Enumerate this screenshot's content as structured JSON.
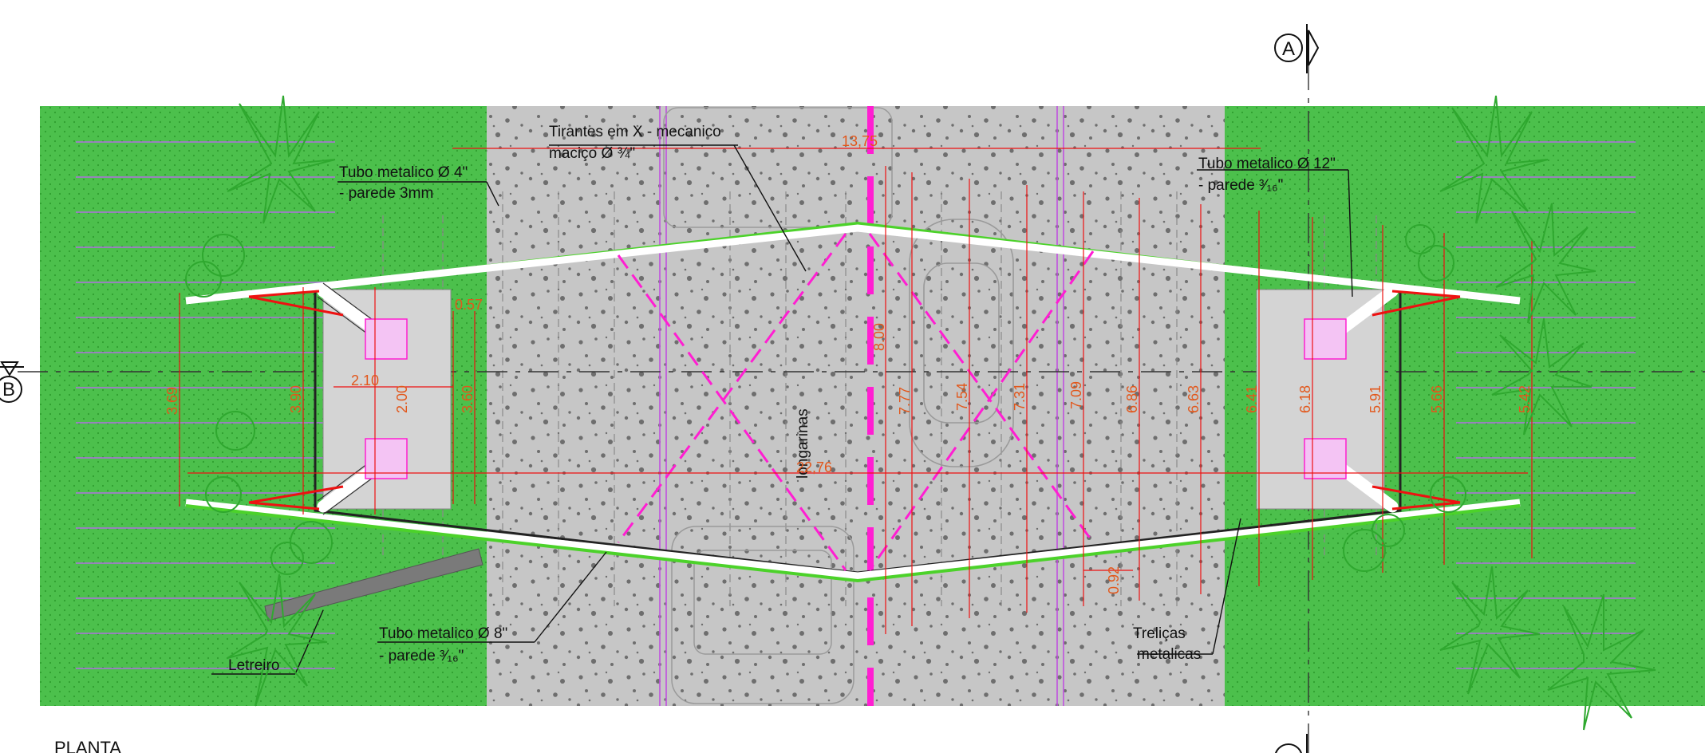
{
  "title": "PLANTA",
  "section_marks": {
    "a": "A",
    "b": "B"
  },
  "labels": {
    "tirantes_line1": "Tirantes em X - mecanico",
    "tirantes_line2": "maciço Ø ¾\"",
    "tubo4_line1": "Tubo metalico Ø 4\"",
    "tubo4_line2": "- parede 3mm",
    "tubo12_line1": "Tubo metalico Ø 12\"",
    "tubo12_line2": "- parede ³⁄₁₆\"",
    "tubo8_line1": "Tubo metalico Ø 8\"",
    "tubo8_line2": "- parede ³⁄₁₆\"",
    "letreiro": "Letreiro",
    "longarinas": "longarinas",
    "trelicas_line1": "Treliças",
    "trelicas_line2": "metalicas"
  },
  "dimensions": {
    "top_span": "13,75",
    "total_span": "22,76",
    "d_057": "0.57",
    "d_210": "2.10",
    "d_369": "3.69",
    "d_390": "3.90",
    "d_200": "2.00",
    "d_360": "3.60",
    "d_800": "8.00",
    "d_777": "7.77",
    "d_754": "7.54",
    "d_731": "7.31",
    "d_709": "7.09",
    "d_686": "6.86",
    "d_663": "6.63",
    "d_641": "6.41",
    "d_618": "6.18",
    "d_591": "5.91",
    "d_566": "5.66",
    "d_542": "5.42",
    "d_092": "0.92"
  },
  "colors": {
    "grass": "#4cc04c",
    "road": "#c6c6c6",
    "magenta": "#ff1ed2",
    "dimension": "#e2571b",
    "red": "#ee1111"
  }
}
